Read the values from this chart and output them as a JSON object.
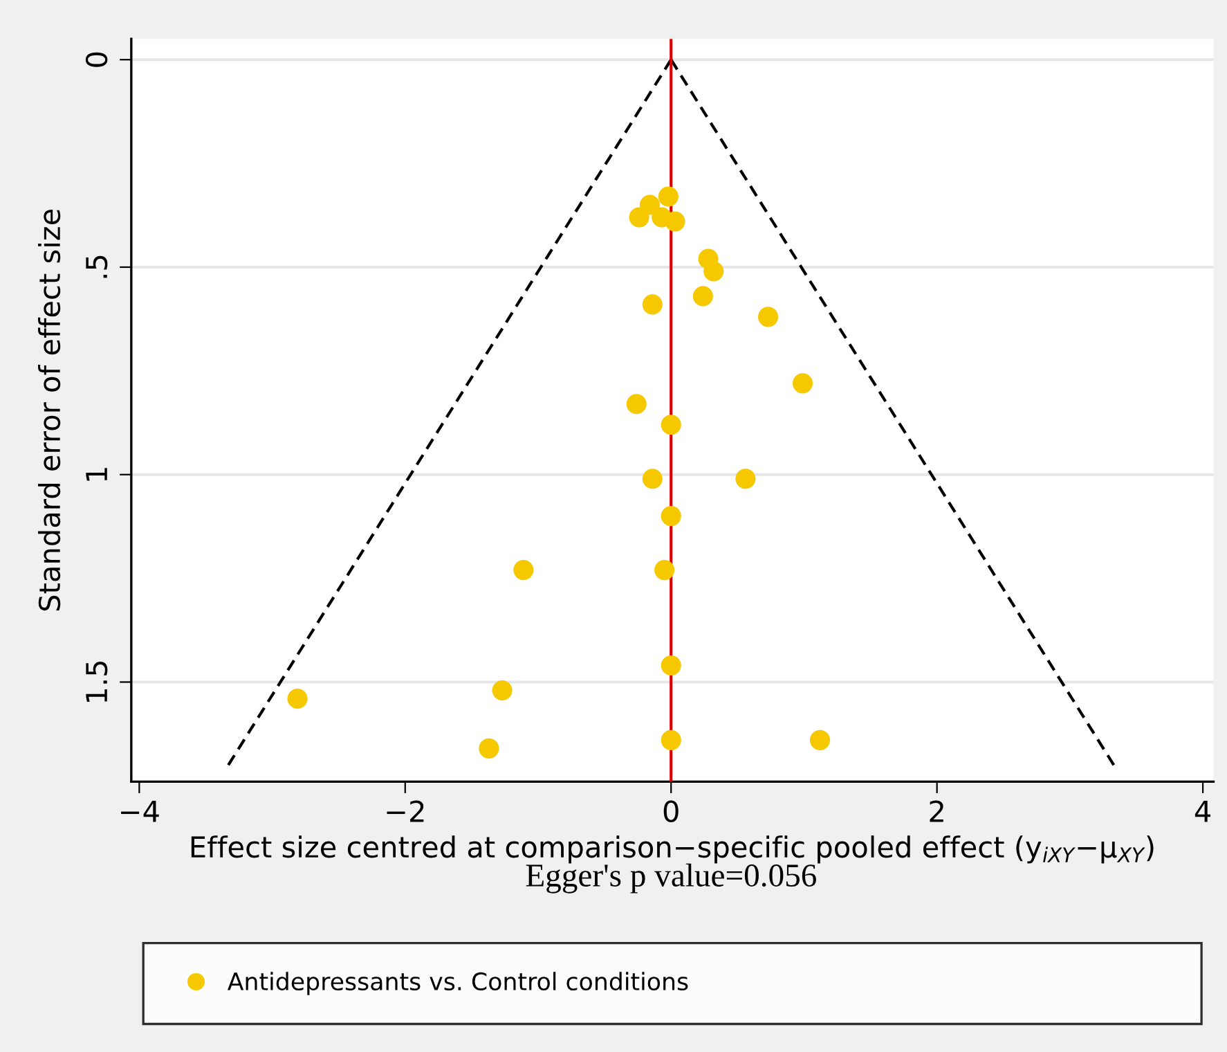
{
  "chart_data": {
    "type": "scatter",
    "xlabel": "Effect size centred at comparison−specific pooled effect (y$_{iXY}$−μ$_{XY}$)",
    "ylabel": "Standard error of effect size",
    "annotations": [
      "Egger's p value=0.056"
    ],
    "xlim": [
      -4.06,
      4.08
    ],
    "ylim": [
      1.74,
      -0.05
    ],
    "xticks": [
      {
        "value": -4,
        "label": "−4"
      },
      {
        "value": -2,
        "label": "−2"
      },
      0,
      2,
      4
    ],
    "yticks": [
      0,
      {
        "value": 0.5,
        "label": ".5"
      },
      1,
      1.5
    ],
    "grid": "y",
    "legend": "bottom",
    "marker": "circle",
    "ref_lines": [
      {
        "axis": "x",
        "value": 0,
        "color": "#e00000",
        "line_style": "solid"
      }
    ],
    "series": [
      {
        "type": "line",
        "color": "#000000",
        "line_style": "dashed",
        "marker": "none",
        "x": [
          0,
          -3.33
        ],
        "values": [
          0,
          1.7
        ]
      },
      {
        "type": "line",
        "color": "#000000",
        "line_style": "dashed",
        "marker": "none",
        "x": [
          0,
          3.33
        ],
        "values": [
          0,
          1.7
        ]
      },
      {
        "name": "Antidepressants vs. Control conditions",
        "color": "#f5c800",
        "x": [
          -0.02,
          -0.16,
          -0.24,
          -0.07,
          0.03,
          0.28,
          0.32,
          -0.14,
          0.24,
          0.73,
          0.99,
          -0.26,
          0,
          -0.14,
          0.56,
          0,
          -1.11,
          -0.05,
          0,
          -1.27,
          -2.81,
          -1.37,
          0,
          1.12
        ],
        "values": [
          0.33,
          0.35,
          0.38,
          0.38,
          0.39,
          0.48,
          0.51,
          0.59,
          0.57,
          0.62,
          0.78,
          0.83,
          0.88,
          1.01,
          1.01,
          1.1,
          1.23,
          1.23,
          1.46,
          1.52,
          1.54,
          1.66,
          1.64,
          1.64
        ]
      }
    ]
  }
}
